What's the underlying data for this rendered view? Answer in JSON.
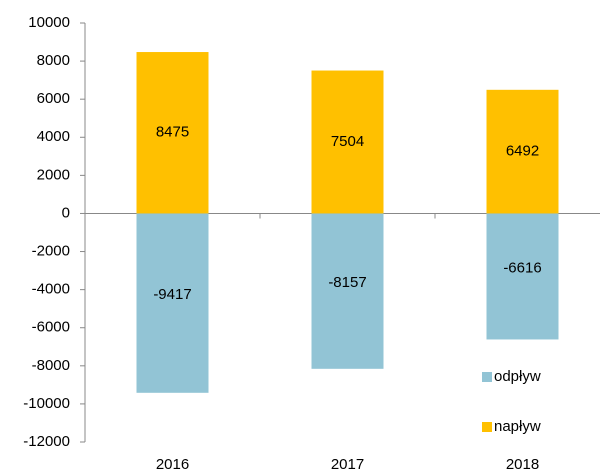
{
  "chart_data": {
    "type": "bar",
    "stacked": true,
    "categories": [
      "2016",
      "2017",
      "2018"
    ],
    "series": [
      {
        "name": "odpływ",
        "color": "#92c4d5",
        "values": [
          -9417,
          -8157,
          -6616
        ]
      },
      {
        "name": "napływ",
        "color": "#ffc000",
        "values": [
          8475,
          7504,
          6492
        ]
      }
    ],
    "ylim": [
      -12000,
      10000
    ],
    "yticks": [
      -12000,
      -10000,
      -8000,
      -6000,
      -4000,
      -2000,
      0,
      2000,
      4000,
      6000,
      8000,
      10000
    ],
    "grid": false,
    "legend": "lower right"
  }
}
